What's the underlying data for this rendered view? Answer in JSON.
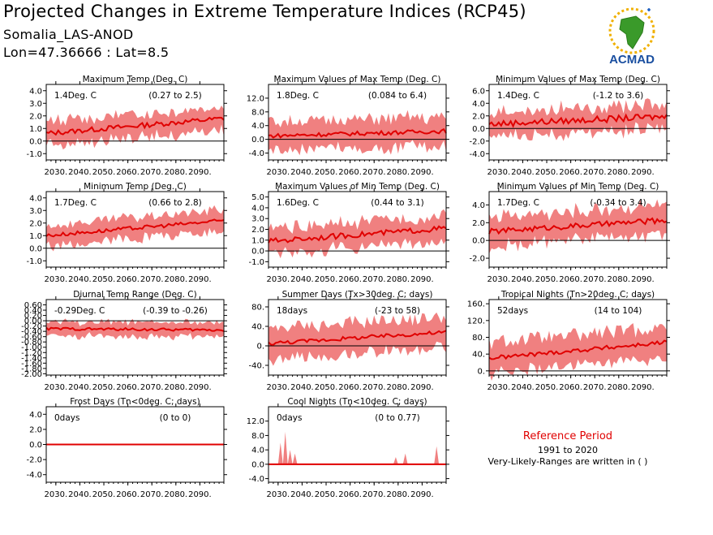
{
  "header": {
    "title": "Projected Changes in Extreme Temperature Indices (RCP45)",
    "location": "Somalia_LAS-ANOD",
    "coords": "Lon=47.36666 : Lat=8.5"
  },
  "logo": {
    "text": "ACMAD",
    "icon": "africa-sun-logo-icon"
  },
  "reference": {
    "title": "Reference Period",
    "years": "1991 to 2020",
    "note": "Very-Likely-Ranges are written in ( )"
  },
  "colors": {
    "band": "#f08080",
    "line": "#e00000",
    "zero": "#000000"
  },
  "chart_data": [
    {
      "type": "line",
      "title": "Maximum Temp (Deg. C)",
      "value_label": "1.4Deg. C",
      "range_label": "(0.27 to 2.5)",
      "x_ticks": [
        "2030.",
        "2040.",
        "2050.",
        "2060.",
        "2070.",
        "2080.",
        "2090."
      ],
      "x_range": [
        2026,
        2100
      ],
      "y_ticks": [
        "4.0",
        "3.0",
        "2.0",
        "1.0",
        "0.0",
        "-1.0"
      ],
      "y_range": [
        -1.5,
        4.5
      ],
      "series": [
        {
          "kind": "median",
          "start": [
            2026,
            0.6
          ],
          "end": [
            2100,
            1.8
          ],
          "noise": 0.2
        },
        {
          "kind": "range",
          "spread": 0.9
        }
      ]
    },
    {
      "type": "line",
      "title": "Maximum Values of Max Temp (Deg. C)",
      "value_label": "1.8Deg. C",
      "range_label": "(0.084 to 6.4)",
      "x_ticks": [
        "2030.",
        "2040.",
        "2050.",
        "2060.",
        "2070.",
        "2080.",
        "2090."
      ],
      "x_range": [
        2026,
        2100
      ],
      "y_ticks": [
        "12.0",
        "8.0",
        "4.0",
        "0.0",
        "-4.0"
      ],
      "y_range": [
        -6,
        16
      ],
      "series": [
        {
          "kind": "median",
          "start": [
            2026,
            1.0
          ],
          "end": [
            2100,
            2.4
          ],
          "noise": 0.6
        },
        {
          "kind": "range",
          "spread": 4.0
        }
      ]
    },
    {
      "type": "line",
      "title": "Minimum Values of Max Temp (Deg. C)",
      "value_label": "1.4Deg. C",
      "range_label": "(-1.2 to 3.6)",
      "x_ticks": [
        "2030.",
        "2040.",
        "2050.",
        "2060.",
        "2070.",
        "2080.",
        "2090."
      ],
      "x_range": [
        2026,
        2100
      ],
      "y_ticks": [
        "6.0",
        "4.0",
        "2.0",
        "0.0",
        "-2.0",
        "-4.0"
      ],
      "y_range": [
        -5,
        7
      ],
      "series": [
        {
          "kind": "median",
          "start": [
            2026,
            0.7
          ],
          "end": [
            2100,
            1.9
          ],
          "noise": 0.5
        },
        {
          "kind": "range",
          "spread": 1.9
        }
      ]
    },
    {
      "type": "line",
      "title": "Minimum Temp (Deg. C)",
      "value_label": "1.7Deg. C",
      "range_label": "(0.66 to 2.8)",
      "x_ticks": [
        "2030.",
        "2040.",
        "2050.",
        "2060.",
        "2070.",
        "2080.",
        "2090."
      ],
      "x_range": [
        2026,
        2100
      ],
      "y_ticks": [
        "4.0",
        "3.0",
        "2.0",
        "1.0",
        "0.0",
        "-1.0"
      ],
      "y_range": [
        -1.5,
        4.5
      ],
      "series": [
        {
          "kind": "median",
          "start": [
            2026,
            1.0
          ],
          "end": [
            2100,
            2.2
          ],
          "noise": 0.15
        },
        {
          "kind": "range",
          "spread": 0.8
        }
      ]
    },
    {
      "type": "line",
      "title": "Maximum Values of Min Temp (Deg. C)",
      "value_label": "1.6Deg. C",
      "range_label": "(0.44 to 3.1)",
      "x_ticks": [
        "2030.",
        "2040.",
        "2050.",
        "2060.",
        "2070.",
        "2080.",
        "2090."
      ],
      "x_range": [
        2026,
        2100
      ],
      "y_ticks": [
        "5.0",
        "4.0",
        "3.0",
        "2.0",
        "1.0",
        "0.0",
        "-1.0"
      ],
      "y_range": [
        -1.5,
        5.5
      ],
      "series": [
        {
          "kind": "median",
          "start": [
            2026,
            0.9
          ],
          "end": [
            2100,
            2.1
          ],
          "noise": 0.25
        },
        {
          "kind": "range",
          "spread": 1.1
        }
      ]
    },
    {
      "type": "line",
      "title": "Minimum Values of Min Temp (Deg. C)",
      "value_label": "1.7Deg. C",
      "range_label": "(-0.34 to 3.4)",
      "x_ticks": [
        "2030.",
        "2040.",
        "2050.",
        "2060.",
        "2070.",
        "2080.",
        "2090."
      ],
      "x_range": [
        2026,
        2100
      ],
      "y_ticks": [
        "4.0",
        "2.0",
        "0.0",
        "-2.0"
      ],
      "y_range": [
        -3,
        5.5
      ],
      "series": [
        {
          "kind": "median",
          "start": [
            2026,
            1.0
          ],
          "end": [
            2100,
            2.3
          ],
          "noise": 0.3
        },
        {
          "kind": "range",
          "spread": 1.6
        }
      ]
    },
    {
      "type": "line",
      "title": "Diurnal Temp Range (Deg. C)",
      "value_label": "-0.29Deg. C",
      "range_label": "(-0.39 to -0.26)",
      "x_ticks": [
        "2030.",
        "2040.",
        "2050.",
        "2060.",
        "2070.",
        "2080.",
        "2090."
      ],
      "x_range": [
        2026,
        2100
      ],
      "y_ticks": [
        "0.60",
        "0.40",
        "0.20",
        "0.00",
        "-0.20",
        "-0.40",
        "-0.60",
        "-0.80",
        "-1.00",
        "-1.20",
        "-1.40",
        "-1.60",
        "-1.80",
        "-2.00"
      ],
      "y_range": [
        -2.05,
        0.8
      ],
      "series": [
        {
          "kind": "median",
          "start": [
            2026,
            -0.3
          ],
          "end": [
            2100,
            -0.35
          ],
          "noise": 0.05
        },
        {
          "kind": "range",
          "spread": 0.25
        }
      ]
    },
    {
      "type": "line",
      "title": "Summer Days (Tx>30deg. C; days)",
      "value_label": "18days",
      "range_label": "(-23 to 58)",
      "x_ticks": [
        "2030.",
        "2040.",
        "2050.",
        "2060.",
        "2070.",
        "2080.",
        "2090."
      ],
      "x_range": [
        2026,
        2100
      ],
      "y_ticks": [
        "80.",
        "40.",
        "0.",
        "-40."
      ],
      "y_range": [
        -60,
        95
      ],
      "series": [
        {
          "kind": "median",
          "start": [
            2026,
            5
          ],
          "end": [
            2100,
            28
          ],
          "noise": 4
        },
        {
          "kind": "range",
          "spread": 30
        }
      ]
    },
    {
      "type": "line",
      "title": "Tropical Nights (Tn>20deg. C; days)",
      "value_label": "52days",
      "range_label": "(14 to 104)",
      "x_ticks": [
        "2030.",
        "2040.",
        "2050.",
        "2060.",
        "2070.",
        "2080.",
        "2090."
      ],
      "x_range": [
        2026,
        2100
      ],
      "y_ticks": [
        "160.",
        "120.",
        "80.",
        "40.",
        "0."
      ],
      "y_range": [
        -10,
        170
      ],
      "series": [
        {
          "kind": "median",
          "start": [
            2026,
            30
          ],
          "end": [
            2100,
            68
          ],
          "noise": 5
        },
        {
          "kind": "range",
          "spread": 35
        }
      ]
    },
    {
      "type": "line",
      "title": "Frost Days (Tn<0deg. C; days)",
      "value_label": "0days",
      "range_label": "(0 to 0)",
      "x_ticks": [
        "2030.",
        "2040.",
        "2050.",
        "2060.",
        "2070.",
        "2080.",
        "2090."
      ],
      "x_range": [
        2026,
        2100
      ],
      "y_ticks": [
        "4.0",
        "2.0",
        "0.0",
        "-2.0",
        "-4.0"
      ],
      "y_range": [
        -5,
        5
      ],
      "series": [
        {
          "kind": "median",
          "start": [
            2026,
            0
          ],
          "end": [
            2100,
            0
          ],
          "noise": 0
        },
        {
          "kind": "range",
          "spread": 0
        }
      ]
    },
    {
      "type": "line",
      "title": "Cool Nights (Tn<10deg. C; days)",
      "value_label": "0days",
      "range_label": "(0 to 0.77)",
      "x_ticks": [
        "2030.",
        "2040.",
        "2050.",
        "2060.",
        "2070.",
        "2080.",
        "2090."
      ],
      "x_range": [
        2026,
        2100
      ],
      "y_ticks": [
        "12.0",
        "8.0",
        "4.0",
        "0.0",
        "-4.0"
      ],
      "y_range": [
        -5,
        16
      ],
      "series": [
        {
          "kind": "median",
          "start": [
            2026,
            0
          ],
          "end": [
            2100,
            0
          ],
          "noise": 0
        },
        {
          "kind": "range",
          "spread": 0,
          "spikes": [
            [
              2031,
              6
            ],
            [
              2033,
              9
            ],
            [
              2035,
              4
            ],
            [
              2037,
              3
            ],
            [
              2079,
              2
            ],
            [
              2083,
              3
            ],
            [
              2096,
              5
            ]
          ]
        }
      ]
    }
  ]
}
